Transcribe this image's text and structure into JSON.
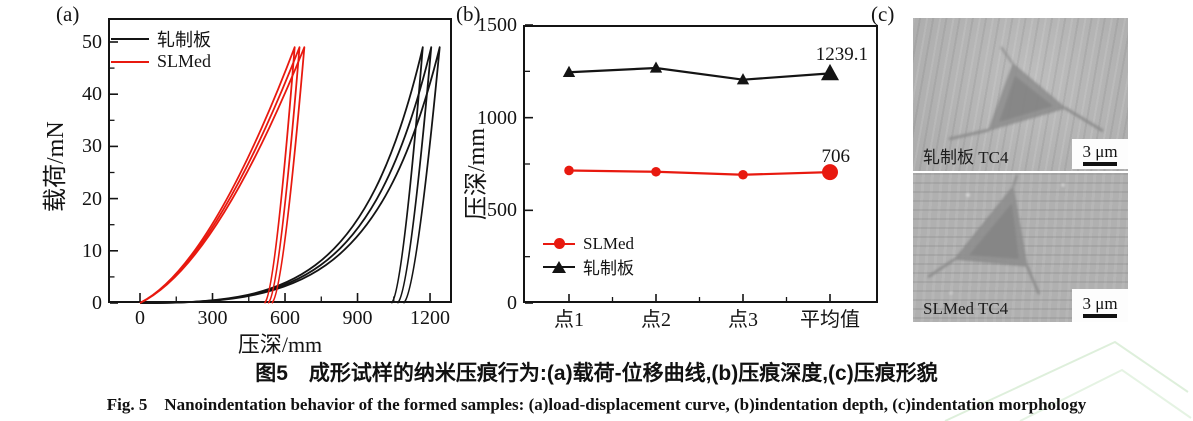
{
  "figure": {
    "panel_a_label": "(a)",
    "panel_b_label": "(b)",
    "panel_c_label": "(c)"
  },
  "colors": {
    "slmed": "#e8190f",
    "rolled": "#141414"
  },
  "chart_data": [
    {
      "type": "line",
      "panel": "a",
      "title": "(a) load-displacement curves",
      "xlabel": "压深/mm",
      "ylabel": "载荷/mN",
      "x_ticks": [
        0,
        300,
        600,
        900,
        1200
      ],
      "y_ticks": [
        0,
        10,
        20,
        30,
        40,
        50
      ],
      "xlim": [
        -130,
        1290
      ],
      "ylim": [
        0,
        54.5
      ],
      "peak_load": 49,
      "grid": false,
      "legend_position": "upper left",
      "series": [
        {
          "name": "轧制板",
          "color": "#141414",
          "shape": "late",
          "loops": [
            {
              "peak_depth": 1170,
              "residual_depth": 1040
            },
            {
              "peak_depth": 1205,
              "residual_depth": 1065
            },
            {
              "peak_depth": 1240,
              "residual_depth": 1090
            }
          ]
        },
        {
          "name": "SLMed",
          "color": "#e8190f",
          "shape": "early",
          "loops": [
            {
              "peak_depth": 640,
              "residual_depth": 515
            },
            {
              "peak_depth": 660,
              "residual_depth": 530
            },
            {
              "peak_depth": 680,
              "residual_depth": 545
            }
          ]
        }
      ]
    },
    {
      "type": "line",
      "panel": "b",
      "title": "(b) indentation depth",
      "ylabel": "压深/mm",
      "categories": [
        "点1",
        "点2",
        "点3",
        "平均值"
      ],
      "y_ticks": [
        0,
        500,
        1000,
        1500
      ],
      "ylim": [
        0,
        1500
      ],
      "grid": false,
      "legend_position": "lower left",
      "series": [
        {
          "name": "SLMed",
          "marker": "circle",
          "color": "#e8190f",
          "values": [
            715,
            708,
            692,
            706
          ],
          "label_last": "706"
        },
        {
          "name": "轧制板",
          "marker": "triangle",
          "color": "#141414",
          "values": [
            1245,
            1268,
            1205,
            1239.1
          ],
          "label_last": "1239.1"
        }
      ]
    }
  ],
  "panel_c": {
    "images": [
      {
        "label": "轧制板 TC4",
        "scale_bar": "3 μm"
      },
      {
        "label": "SLMed TC4",
        "scale_bar": "3 μm"
      }
    ]
  },
  "caption": {
    "zh": "图5　成形试样的纳米压痕行为:(a)载荷-位移曲线,(b)压痕深度,(c)压痕形貌",
    "en": "Fig. 5　Nanoindentation behavior of the formed samples: (a)load-displacement curve, (b)indentation depth, (c)indentation morphology"
  }
}
